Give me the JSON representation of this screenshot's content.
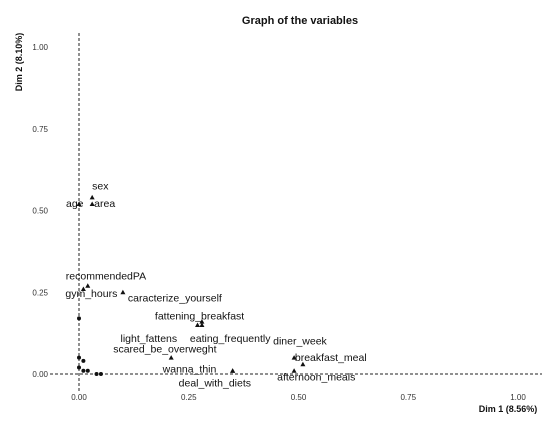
{
  "chart_data": {
    "type": "scatter",
    "title": "Graph of the variables",
    "xlabel": "Dim 1 (8.56%)",
    "ylabel": "Dim 2 (8.10%)",
    "xlim": [
      0,
      1
    ],
    "ylim": [
      0,
      1
    ],
    "xticks": [
      {
        "value": 0,
        "label": "0.00"
      },
      {
        "value": 0.25,
        "label": "0.25"
      },
      {
        "value": 0.5,
        "label": "0.50"
      },
      {
        "value": 0.75,
        "label": "0.75"
      },
      {
        "value": 1,
        "label": "1.00"
      }
    ],
    "yticks": [
      {
        "value": 0,
        "label": "0.00"
      },
      {
        "value": 0.25,
        "label": "0.25"
      },
      {
        "value": 0.5,
        "label": "0.50"
      },
      {
        "value": 0.75,
        "label": "0.75"
      },
      {
        "value": 1,
        "label": "1.00"
      }
    ],
    "points": [
      {
        "label": "sex",
        "x": 0.03,
        "y": 0.54
      },
      {
        "label": "age",
        "x": 0.0,
        "y": 0.52
      },
      {
        "label": "area",
        "x": 0.03,
        "y": 0.52
      },
      {
        "label": "recommendedPA",
        "x": 0.02,
        "y": 0.27
      },
      {
        "label": "gym_hours",
        "x": 0.01,
        "y": 0.26
      },
      {
        "label": "caracterize_yourself",
        "x": 0.1,
        "y": 0.25
      },
      {
        "label": "fattening_breakfast",
        "x": 0.28,
        "y": 0.16
      },
      {
        "label": "light_fattens",
        "x": 0.27,
        "y": 0.15
      },
      {
        "label": "eating_frequently",
        "x": 0.28,
        "y": 0.15
      },
      {
        "label": "scared_be_overweght",
        "x": 0.21,
        "y": 0.05
      },
      {
        "label": "wanna_thin",
        "x": 0.35,
        "y": 0.01
      },
      {
        "label": "deal_with_diets",
        "x": 0.35,
        "y": 0.01
      },
      {
        "label": "diner_week",
        "x": 0.49,
        "y": 0.05
      },
      {
        "label": "breakfast_meal",
        "x": 0.51,
        "y": 0.03
      },
      {
        "label": "afternoon_meals",
        "x": 0.49,
        "y": 0.01
      }
    ],
    "unlabeled_points": [
      {
        "x": 0.0,
        "y": 0.17
      },
      {
        "x": 0.0,
        "y": 0.05
      },
      {
        "x": 0.01,
        "y": 0.04
      },
      {
        "x": 0.0,
        "y": 0.02
      },
      {
        "x": 0.01,
        "y": 0.01
      },
      {
        "x": 0.02,
        "y": 0.01
      },
      {
        "x": 0.04,
        "y": 0.0
      },
      {
        "x": 0.05,
        "y": 0.0
      }
    ],
    "grid": false,
    "legend": "none"
  }
}
